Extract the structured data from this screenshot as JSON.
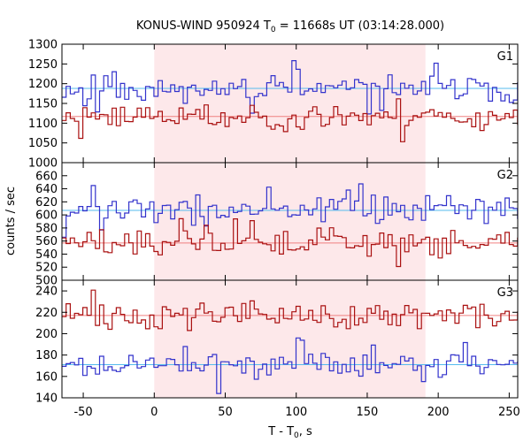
{
  "chart_data": {
    "type": "line",
    "title_prefix": "KONUS-WIND 950924 T",
    "title_sub": "0",
    "title_suffix": " = 11668s UT (03:14:28.000)",
    "xlabel_prefix": "T - T",
    "xlabel_sub": "0",
    "xlabel_suffix": ", s",
    "ylabel": "counts / sec",
    "xlim": [
      -65,
      256
    ],
    "xticks": [
      -50,
      0,
      50,
      100,
      150,
      200,
      250
    ],
    "shaded_interval": [
      0,
      191
    ],
    "colors": {
      "shade": "#fde8ea",
      "blue": "#3333cc",
      "red": "#aa1111",
      "blue_fit": "#55bbee",
      "red_fit": "#f08080",
      "axis": "#000000"
    },
    "panels": [
      {
        "label": "G1",
        "ylim": [
          1000,
          1300
        ],
        "yticks": [
          1000,
          1050,
          1100,
          1150,
          1200,
          1250,
          1300
        ],
        "series": [
          {
            "color": "blue",
            "mean": 1188,
            "amp": 22,
            "seed": 11,
            "fit": 1188
          },
          {
            "color": "red",
            "mean": 1117,
            "amp": 20,
            "seed": 23,
            "fit": 1117
          }
        ]
      },
      {
        "label": "G2",
        "ylim": [
          500,
          680
        ],
        "yticks": [
          500,
          520,
          540,
          560,
          580,
          600,
          620,
          640,
          660
        ],
        "series": [
          {
            "color": "blue",
            "mean": 607,
            "amp": 14,
            "seed": 37,
            "fit": 607
          },
          {
            "color": "red",
            "mean": 557,
            "amp": 12,
            "seed": 51,
            "fit": 557
          }
        ]
      },
      {
        "label": "G3",
        "ylim": [
          140,
          250
        ],
        "yticks": [
          140,
          160,
          180,
          200,
          220,
          240
        ],
        "series": [
          {
            "color": "red",
            "mean": 217,
            "amp": 8,
            "seed": 71,
            "fit": 217
          },
          {
            "color": "blue",
            "mean": 171,
            "amp": 8,
            "seed": 89,
            "fit": 171
          }
        ]
      }
    ]
  }
}
